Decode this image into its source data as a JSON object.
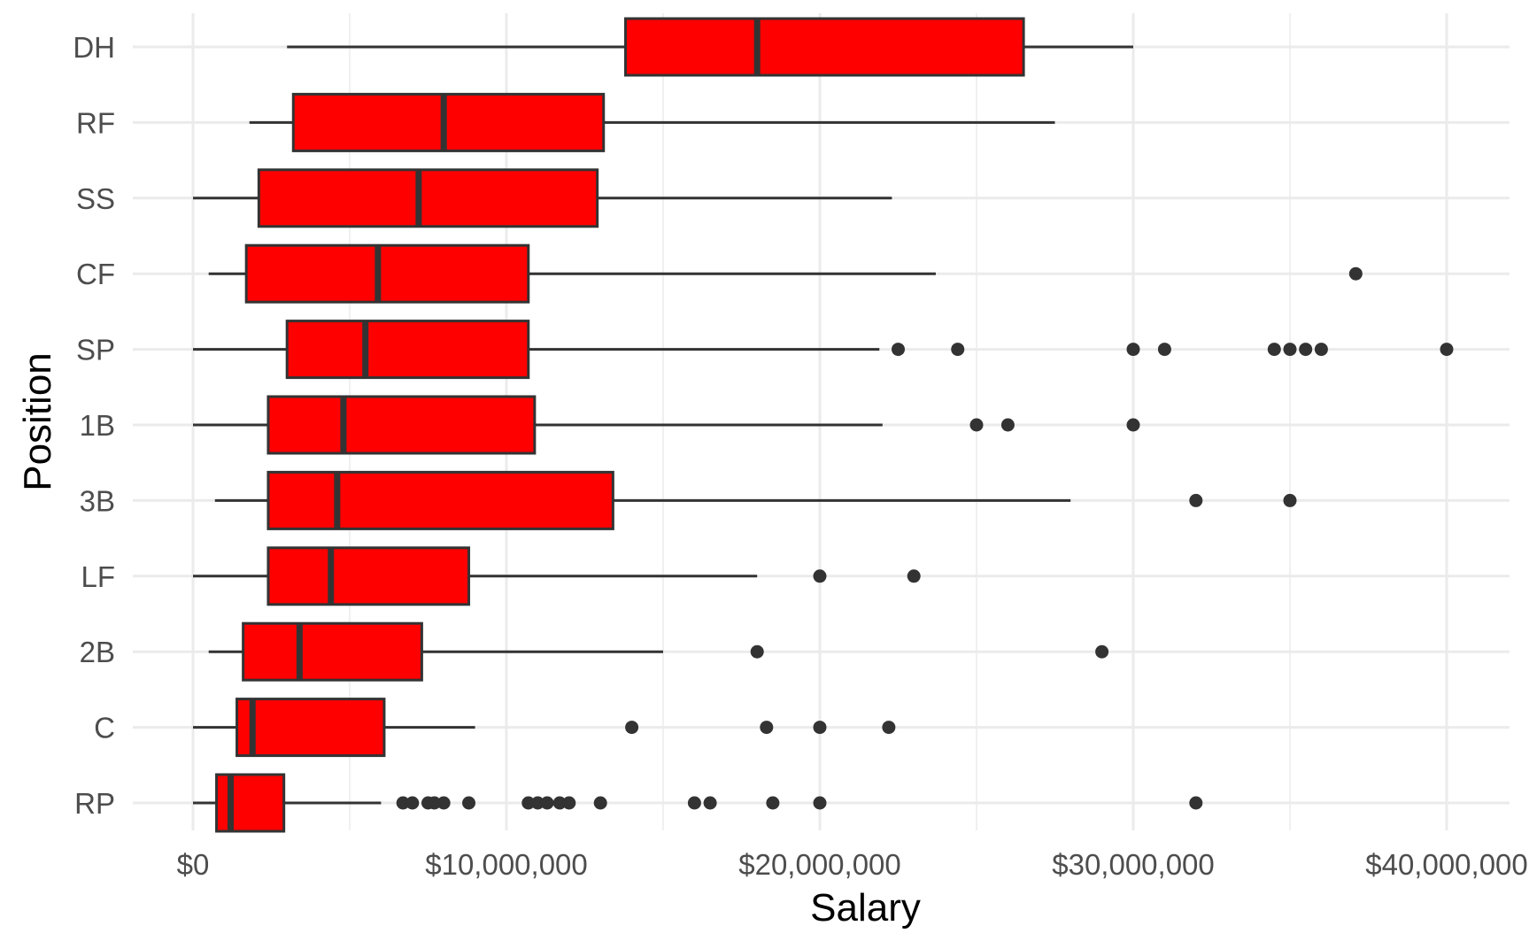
{
  "chart_data": {
    "type": "boxplot",
    "orientation": "horizontal",
    "title": "",
    "xlabel": "Salary",
    "ylabel": "Position",
    "xlim": [
      -2000000,
      42000000
    ],
    "x_ticks": [
      0,
      10000000,
      20000000,
      30000000,
      40000000
    ],
    "x_tick_labels": [
      "$0",
      "$10,000,000",
      "$20,000,000",
      "$30,000,000",
      "$40,000,000"
    ],
    "grid": true,
    "legend": "none",
    "box_fill": "#ff0000",
    "box_stroke": "#333333",
    "outlier_color": "#333333",
    "background": "#ffffff",
    "gridline_color": "#ebebeb",
    "categories": [
      "DH",
      "RF",
      "SS",
      "CF",
      "SP",
      "1B",
      "3B",
      "LF",
      "2B",
      "C",
      "RP"
    ],
    "boxes": [
      {
        "position": "DH",
        "whisker_low": 3000000,
        "q1": 13800000,
        "median": 18000000,
        "q3": 26500000,
        "whisker_high": 30000000,
        "outliers": []
      },
      {
        "position": "RF",
        "whisker_low": 1800000,
        "q1": 3200000,
        "median": 8000000,
        "q3": 13100000,
        "whisker_high": 27500000,
        "outliers": []
      },
      {
        "position": "SS",
        "whisker_low": 0,
        "q1": 2100000,
        "median": 7200000,
        "q3": 12900000,
        "whisker_high": 22300000,
        "outliers": []
      },
      {
        "position": "CF",
        "whisker_low": 500000,
        "q1": 1700000,
        "median": 5900000,
        "q3": 10700000,
        "whisker_high": 23700000,
        "outliers": [
          37100000
        ]
      },
      {
        "position": "SP",
        "whisker_low": 0,
        "q1": 3000000,
        "median": 5500000,
        "q3": 10700000,
        "whisker_high": 21900000,
        "outliers": [
          22500000,
          24400000,
          30000000,
          31000000,
          34500000,
          35000000,
          35500000,
          36000000,
          40000000
        ]
      },
      {
        "position": "1B",
        "whisker_low": 0,
        "q1": 2400000,
        "median": 4800000,
        "q3": 10900000,
        "whisker_high": 22000000,
        "outliers": [
          25000000,
          26000000,
          30000000
        ]
      },
      {
        "position": "3B",
        "whisker_low": 700000,
        "q1": 2400000,
        "median": 4600000,
        "q3": 13400000,
        "whisker_high": 28000000,
        "outliers": [
          32000000,
          35000000
        ]
      },
      {
        "position": "LF",
        "whisker_low": 0,
        "q1": 2400000,
        "median": 4400000,
        "q3": 8800000,
        "whisker_high": 18000000,
        "outliers": [
          20000000,
          23000000
        ]
      },
      {
        "position": "2B",
        "whisker_low": 500000,
        "q1": 1600000,
        "median": 3400000,
        "q3": 7300000,
        "whisker_high": 15000000,
        "outliers": [
          18000000,
          29000000
        ]
      },
      {
        "position": "C",
        "whisker_low": 0,
        "q1": 1400000,
        "median": 1900000,
        "q3": 6100000,
        "whisker_high": 9000000,
        "outliers": [
          14000000,
          18300000,
          20000000,
          22200000
        ]
      },
      {
        "position": "RP",
        "whisker_low": 0,
        "q1": 750000,
        "median": 1200000,
        "q3": 2900000,
        "whisker_high": 6000000,
        "outliers": [
          6700000,
          7000000,
          7500000,
          7700000,
          8000000,
          8800000,
          10700000,
          11000000,
          11300000,
          11700000,
          12000000,
          13000000,
          16000000,
          16500000,
          18500000,
          20000000,
          32000000
        ]
      }
    ]
  }
}
